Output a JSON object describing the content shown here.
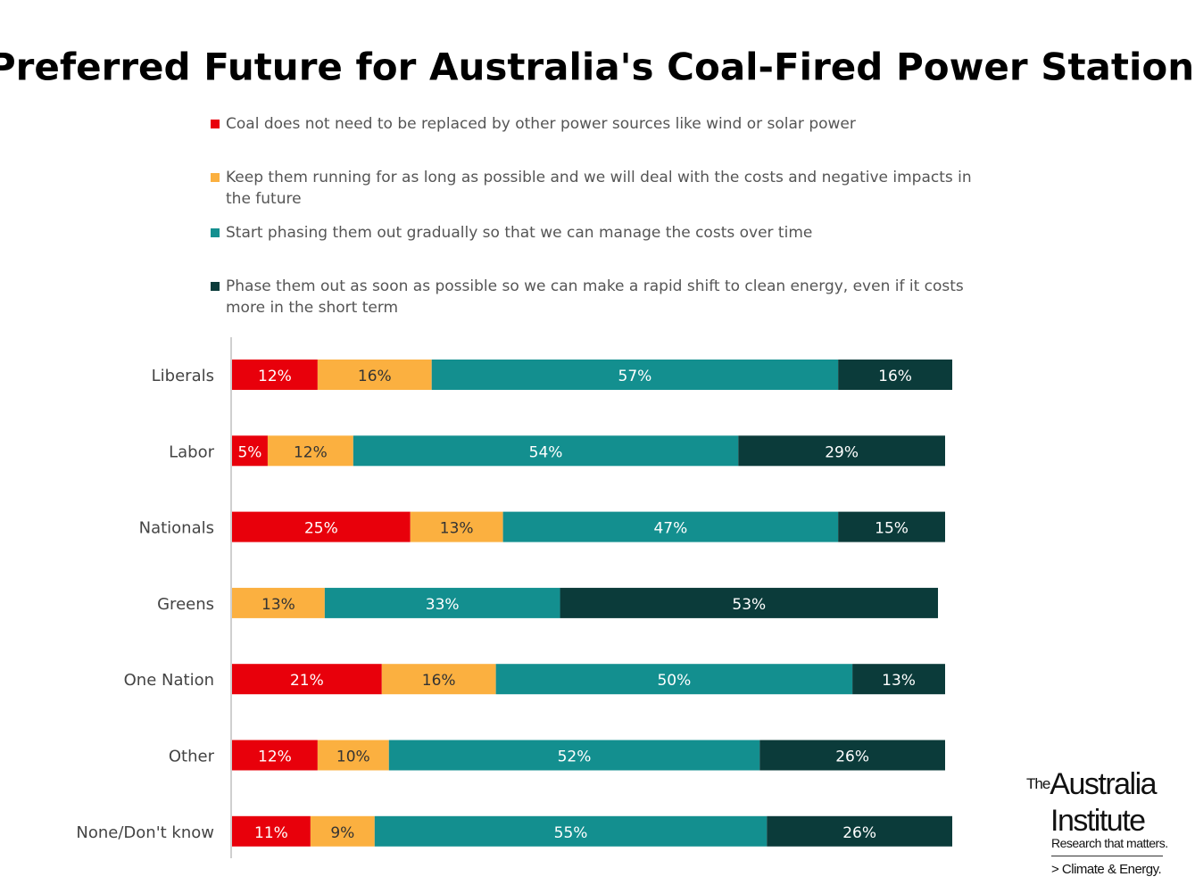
{
  "chart_data": {
    "type": "stacked-bar-horizontal",
    "title": "Preferred Future for Australia's Coal-Fired Power Stations",
    "categories": [
      "Liberals",
      "Labor",
      "Nationals",
      "Greens",
      "One Nation",
      "Other",
      "None/Don't know"
    ],
    "xlim": [
      0,
      100
    ],
    "series": [
      {
        "name": "Coal does not need to be replaced by other power sources like wind or solar power",
        "color": "#e8000b",
        "label_color": "#ffffff",
        "values": [
          12,
          5,
          25,
          null,
          21,
          12,
          11
        ],
        "value_labels": [
          "12%",
          "5%",
          "25%",
          null,
          "21%",
          "12%",
          "11%"
        ]
      },
      {
        "name": "Keep them running for as long as possible and we will deal with the costs and negative impacts in the future",
        "color": "#fbb040",
        "label_color": "#333333",
        "values": [
          16,
          12,
          13,
          13,
          16,
          10,
          9
        ],
        "value_labels": [
          "16%",
          "12%",
          "13%",
          "13%",
          "16%",
          "10%",
          "9%"
        ]
      },
      {
        "name": "Start phasing them out gradually so that we can manage the costs over time",
        "color": "#138f8f",
        "label_color": "#ffffff",
        "values": [
          57,
          54,
          47,
          33,
          50,
          52,
          55
        ],
        "value_labels": [
          "57%",
          "54%",
          "47%",
          "33%",
          "50%",
          "52%",
          "55%"
        ]
      },
      {
        "name": "Phase them out as soon as possible so we can make a rapid shift to clean energy, even if it costs more in the short term",
        "color": "#0b3b3a",
        "label_color": "#ffffff",
        "values": [
          16,
          29,
          15,
          53,
          13,
          26,
          26
        ],
        "value_labels": [
          "16%",
          "29%",
          "15%",
          "53%",
          "13%",
          "26%",
          "26%"
        ]
      }
    ]
  },
  "logo": {
    "the": "The",
    "name1": "Australia",
    "name2": "Institute",
    "tagline": "Research that matters.",
    "program": "> Climate & Energy."
  }
}
